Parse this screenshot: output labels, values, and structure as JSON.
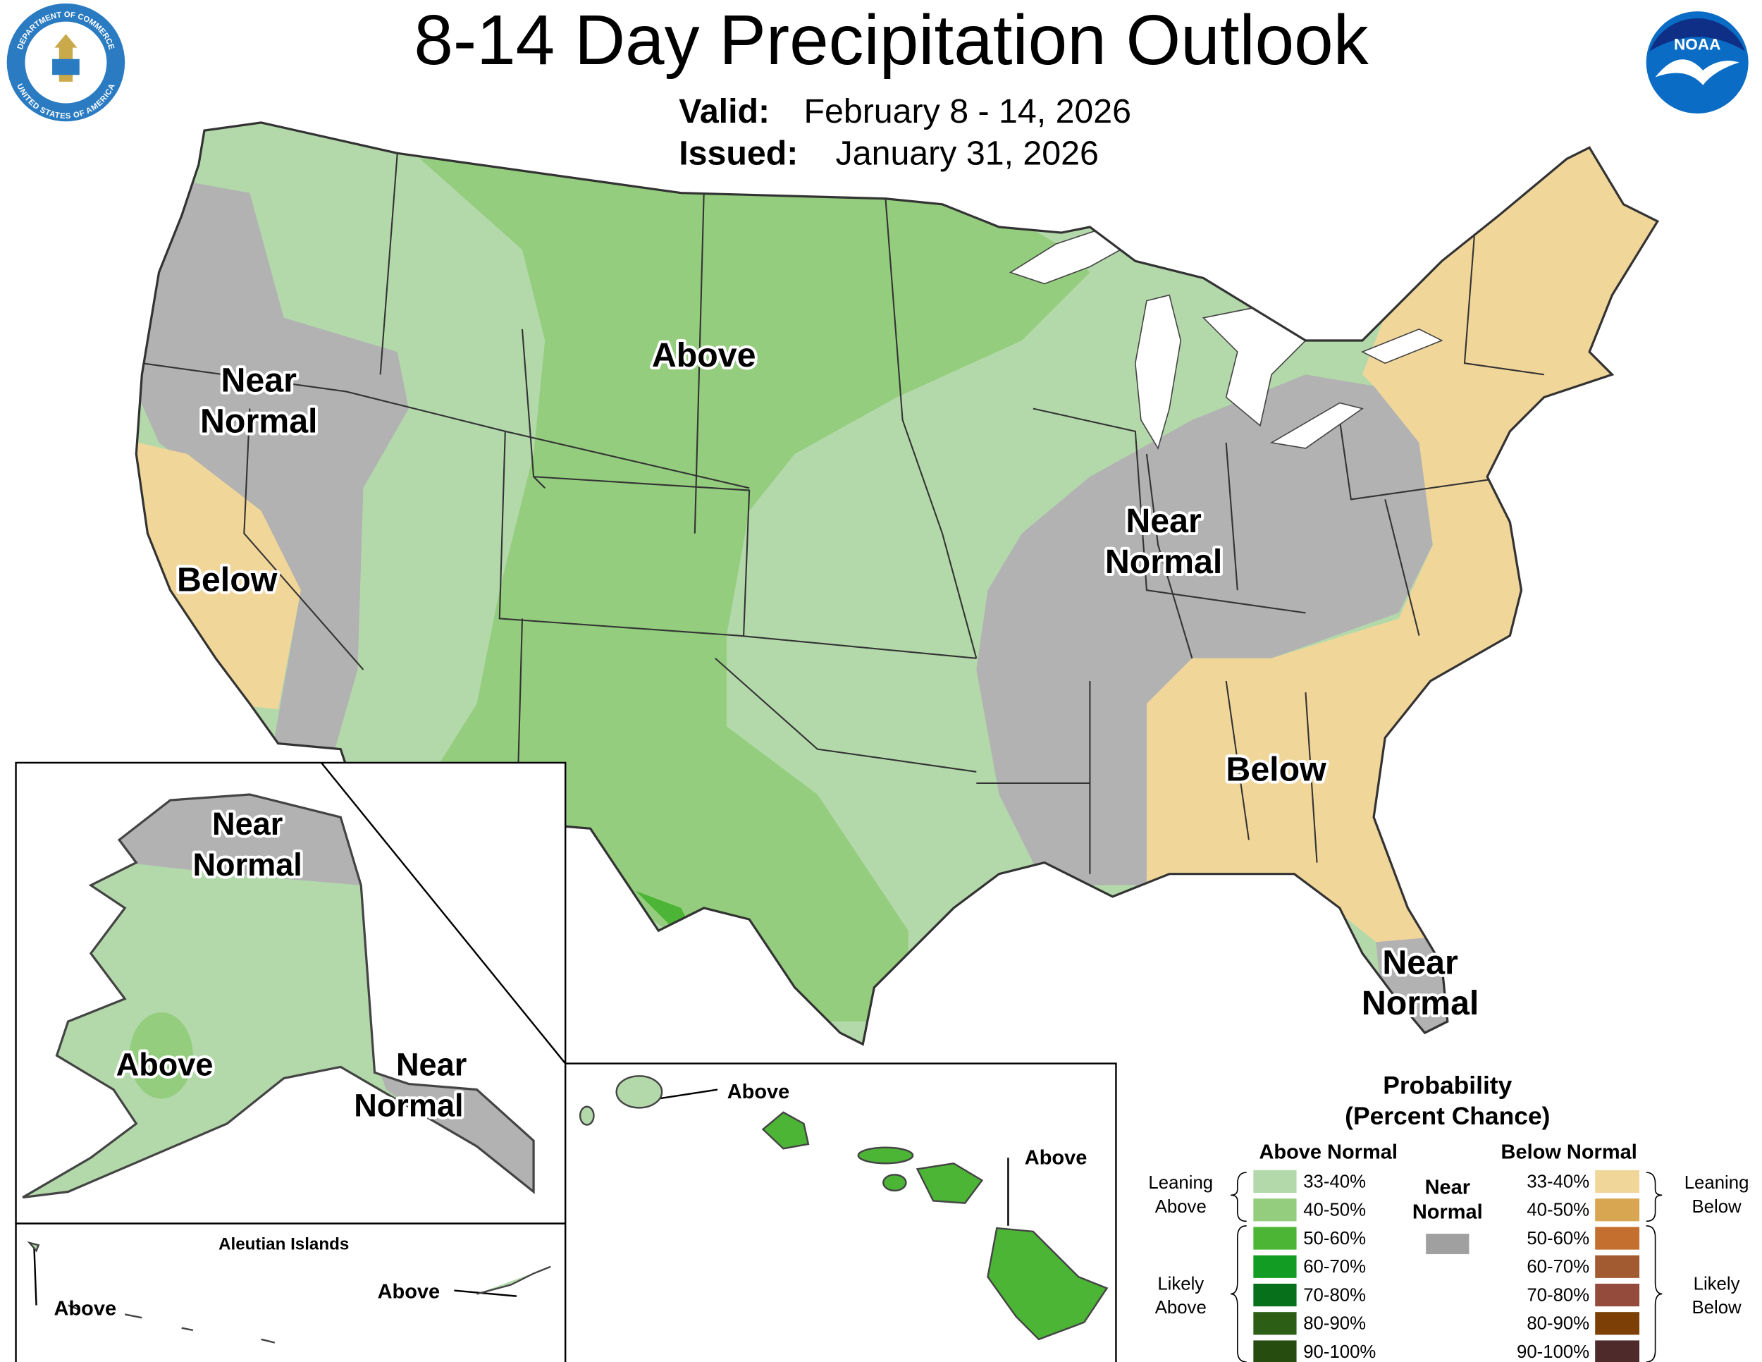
{
  "header": {
    "title": "8-14 Day Precipitation Outlook",
    "valid_label": "Valid:",
    "valid": "February 8 - 14, 2026",
    "issued_label": "Issued:",
    "issued": "January 31, 2026"
  },
  "logos": {
    "noaa": "NOAA",
    "commerce_top": "DEPARTMENT OF COMMERCE",
    "commerce_bottom": "UNITED STATES OF AMERICA"
  },
  "conus_labels": [
    [
      "Near",
      "Normal"
    ],
    [
      "Below"
    ],
    [
      "Above"
    ],
    [
      "Near",
      "Normal"
    ],
    [
      "Below"
    ],
    [
      "Near",
      "Normal"
    ]
  ],
  "alaska_labels": [
    [
      "Near",
      "Normal"
    ],
    [
      "Above"
    ],
    [
      "Near",
      "Normal"
    ]
  ],
  "aleutian": {
    "title": "Aleutian Islands",
    "labels": [
      "Above",
      "Above"
    ]
  },
  "hawaii_labels": [
    "Above",
    "Above"
  ],
  "legend": {
    "title": "Probability",
    "subtitle": "(Percent Chance)",
    "above": {
      "name": "Above Normal",
      "leaning": [
        "Leaning",
        "Above"
      ],
      "likely": [
        "Likely",
        "Above"
      ],
      "bins": [
        {
          "label": "33-40%",
          "color": "#b3d9ab"
        },
        {
          "label": "40-50%",
          "color": "#94cd7e"
        },
        {
          "label": "50-60%",
          "color": "#4db535"
        },
        {
          "label": "60-70%",
          "color": "#139c24"
        },
        {
          "label": "70-80%",
          "color": "#06701a"
        },
        {
          "label": "80-90%",
          "color": "#2c5e16"
        },
        {
          "label": "90-100%",
          "color": "#264d0f"
        }
      ]
    },
    "near": {
      "name": [
        "Near",
        "Normal"
      ],
      "color": "#a0a0a0"
    },
    "below": {
      "name": "Below Normal",
      "leaning": [
        "Leaning",
        "Below"
      ],
      "likely": [
        "Likely",
        "Below"
      ],
      "bins": [
        {
          "label": "33-40%",
          "color": "#f1d69a"
        },
        {
          "label": "40-50%",
          "color": "#d8a650"
        },
        {
          "label": "50-60%",
          "color": "#c46f2f"
        },
        {
          "label": "60-70%",
          "color": "#a25a30"
        },
        {
          "label": "70-80%",
          "color": "#954b3c"
        },
        {
          "label": "80-90%",
          "color": "#7c3f05"
        },
        {
          "label": "90-100%",
          "color": "#4e2a2a"
        }
      ]
    }
  }
}
